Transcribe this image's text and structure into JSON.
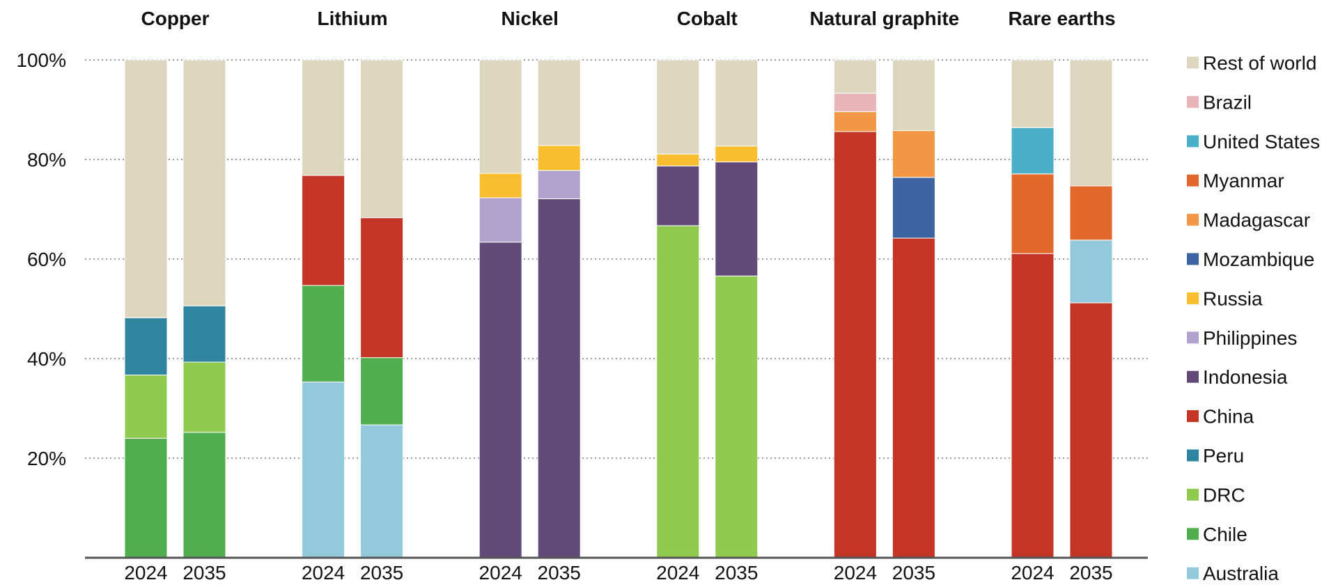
{
  "chart_data": {
    "type": "bar",
    "stacked": true,
    "ylim": [
      0,
      100
    ],
    "yticks": [
      20,
      40,
      60,
      80,
      100
    ],
    "ytick_labels": [
      "20%",
      "40%",
      "60%",
      "80%",
      "100%"
    ],
    "grid": true,
    "legend_placement": "right",
    "legend": [
      {
        "name": "Rest of world",
        "color": "#DDD6BE"
      },
      {
        "name": "Brazil",
        "color": "#E9B5B8"
      },
      {
        "name": "United States",
        "color": "#4AAFC9"
      },
      {
        "name": "Myanmar",
        "color": "#E2682C"
      },
      {
        "name": "Madagascar",
        "color": "#F29746"
      },
      {
        "name": "Mozambique",
        "color": "#3B64A0"
      },
      {
        "name": "Russia",
        "color": "#F8BE2F"
      },
      {
        "name": "Philippines",
        "color": "#B0A2CC"
      },
      {
        "name": "Indonesia",
        "color": "#614A78"
      },
      {
        "name": "China",
        "color": "#C43526"
      },
      {
        "name": "Peru",
        "color": "#2F84A0"
      },
      {
        "name": "DRC",
        "color": "#8FCA4E"
      },
      {
        "name": "Chile",
        "color": "#50AE4E"
      },
      {
        "name": "Australia",
        "color": "#92CADB"
      }
    ],
    "groups": [
      {
        "title": "Copper",
        "bars": [
          {
            "year": "2024",
            "segments": [
              {
                "name": "Chile",
                "value": 24
              },
              {
                "name": "DRC",
                "value": 12.7
              },
              {
                "name": "Peru",
                "value": 11.5
              },
              {
                "name": "Rest of world",
                "value": 51.8
              }
            ]
          },
          {
            "year": "2035",
            "segments": [
              {
                "name": "Chile",
                "value": 25.2
              },
              {
                "name": "DRC",
                "value": 14.1
              },
              {
                "name": "Peru",
                "value": 11.3
              },
              {
                "name": "Rest of world",
                "value": 49.4
              }
            ]
          }
        ]
      },
      {
        "title": "Lithium",
        "bars": [
          {
            "year": "2024",
            "segments": [
              {
                "name": "Australia",
                "value": 35.3
              },
              {
                "name": "Chile",
                "value": 19.4
              },
              {
                "name": "China",
                "value": 22.1
              },
              {
                "name": "Rest of world",
                "value": 23.2
              }
            ]
          },
          {
            "year": "2035",
            "segments": [
              {
                "name": "Australia",
                "value": 26.7
              },
              {
                "name": "Chile",
                "value": 13.5
              },
              {
                "name": "China",
                "value": 28.1
              },
              {
                "name": "Rest of world",
                "value": 31.7
              }
            ]
          }
        ]
      },
      {
        "title": "Nickel",
        "bars": [
          {
            "year": "2024",
            "segments": [
              {
                "name": "Indonesia",
                "value": 63.4
              },
              {
                "name": "Philippines",
                "value": 8.9
              },
              {
                "name": "Russia",
                "value": 4.9
              },
              {
                "name": "Rest of world",
                "value": 22.8
              }
            ]
          },
          {
            "year": "2035",
            "segments": [
              {
                "name": "Indonesia",
                "value": 72.1
              },
              {
                "name": "Philippines",
                "value": 5.7
              },
              {
                "name": "Russia",
                "value": 5
              },
              {
                "name": "Rest of world",
                "value": 17.2
              }
            ]
          }
        ]
      },
      {
        "title": "Cobalt",
        "bars": [
          {
            "year": "2024",
            "segments": [
              {
                "name": "DRC",
                "value": 66.7
              },
              {
                "name": "Indonesia",
                "value": 12
              },
              {
                "name": "Russia",
                "value": 2.4
              },
              {
                "name": "Rest of world",
                "value": 18.9
              }
            ]
          },
          {
            "year": "2035",
            "segments": [
              {
                "name": "DRC",
                "value": 56.6
              },
              {
                "name": "Indonesia",
                "value": 22.9
              },
              {
                "name": "Russia",
                "value": 3.2
              },
              {
                "name": "Rest of world",
                "value": 17.3
              }
            ]
          }
        ]
      },
      {
        "title": "Natural graphite",
        "bars": [
          {
            "year": "2024",
            "segments": [
              {
                "name": "China",
                "value": 85.6
              },
              {
                "name": "Madagascar",
                "value": 4
              },
              {
                "name": "Brazil",
                "value": 3.7
              },
              {
                "name": "Rest of world",
                "value": 6.7
              }
            ]
          },
          {
            "year": "2035",
            "segments": [
              {
                "name": "China",
                "value": 64.2
              },
              {
                "name": "Mozambique",
                "value": 12.2
              },
              {
                "name": "Madagascar",
                "value": 9.4
              },
              {
                "name": "Rest of world",
                "value": 14.2
              }
            ]
          }
        ]
      },
      {
        "title": "Rare earths",
        "bars": [
          {
            "year": "2024",
            "segments": [
              {
                "name": "China",
                "value": 61.1
              },
              {
                "name": "Myanmar",
                "value": 16
              },
              {
                "name": "United States",
                "value": 9.3
              },
              {
                "name": "Rest of world",
                "value": 13.6
              }
            ]
          },
          {
            "year": "2035",
            "segments": [
              {
                "name": "China",
                "value": 51.2
              },
              {
                "name": "Australia",
                "value": 12.6
              },
              {
                "name": "Myanmar",
                "value": 10.9
              },
              {
                "name": "Rest of world",
                "value": 25.3
              }
            ]
          }
        ]
      }
    ]
  }
}
